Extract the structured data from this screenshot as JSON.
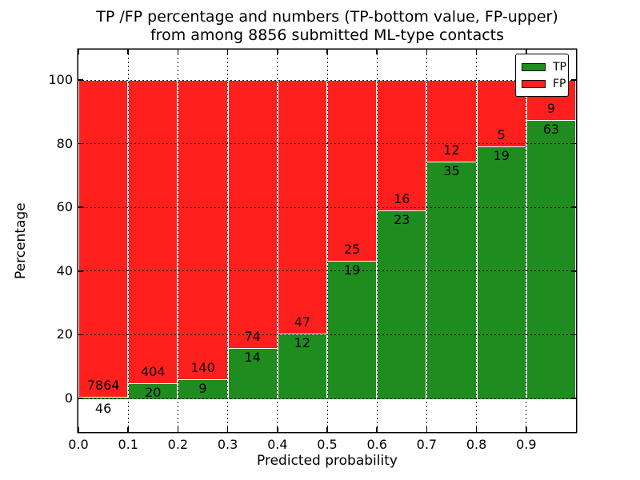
{
  "title": {
    "line1": "TP /FP percentage and numbers (TP-bottom value, FP-upper)",
    "line2": "from among 8856 submitted ML-type contacts"
  },
  "axes": {
    "xlabel": "Predicted probability",
    "ylabel": "Percentage",
    "x_tick_labels": [
      "0.0",
      "0.1",
      "0.2",
      "0.3",
      "0.4",
      "0.5",
      "0.6",
      "0.7",
      "0.8",
      "0.9"
    ],
    "y_tick_labels": [
      "0",
      "20",
      "40",
      "60",
      "80",
      "100"
    ]
  },
  "legend": {
    "position": "upper right",
    "entries": [
      {
        "label": "TP",
        "color": "#1e8c1e"
      },
      {
        "label": "FP",
        "color": "#ff1f1c"
      }
    ]
  },
  "colors": {
    "tp_green": "#1e8c1e",
    "fp_red": "#ff1f1c",
    "bar_edge": "#ffffff",
    "grid": "#000000",
    "text": "#000000",
    "background": "#ffffff"
  },
  "chart_data": {
    "type": "bar",
    "stacked": true,
    "normalized_to_percent": true,
    "title": "TP /FP percentage and numbers (TP-bottom value, FP-upper) from among 8856 submitted ML-type contacts",
    "xlabel": "Predicted probability",
    "ylabel": "Percentage",
    "total_contacts": 8856,
    "bin_edges": [
      0.0,
      0.1,
      0.2,
      0.3,
      0.4,
      0.5,
      0.6,
      0.7,
      0.8,
      0.9,
      1.0
    ],
    "categories": [
      "0.0-0.1",
      "0.1-0.2",
      "0.2-0.3",
      "0.3-0.4",
      "0.4-0.5",
      "0.5-0.6",
      "0.6-0.7",
      "0.7-0.8",
      "0.8-0.9",
      "0.9-1.0"
    ],
    "series": [
      {
        "name": "TP",
        "color": "#1e8c1e",
        "counts": [
          46,
          20,
          9,
          14,
          12,
          19,
          23,
          35,
          19,
          63
        ]
      },
      {
        "name": "FP",
        "color": "#ff1f1c",
        "counts": [
          7864,
          404,
          140,
          74,
          47,
          25,
          16,
          12,
          5,
          9
        ]
      }
    ],
    "tp_percent": [
      0.58,
      4.72,
      6.04,
      15.91,
      20.34,
      43.18,
      58.97,
      74.47,
      79.17,
      87.5
    ],
    "fp_percent": [
      99.42,
      95.28,
      93.96,
      84.09,
      79.66,
      56.82,
      41.03,
      25.53,
      20.83,
      12.5
    ],
    "xlim": [
      0.0,
      1.0
    ],
    "ylim": [
      -10.5,
      109.5
    ],
    "grid": true,
    "grid_style": "dotted",
    "legend_position": "upper right"
  }
}
